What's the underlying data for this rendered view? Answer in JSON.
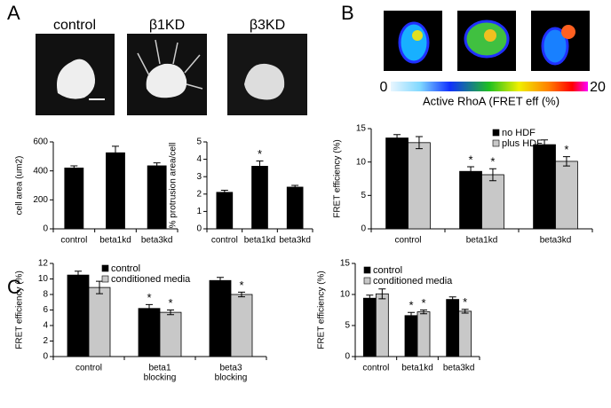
{
  "panel_labels": [
    "A",
    "B",
    "C"
  ],
  "images": {
    "captions": [
      "control",
      "β1KD",
      "β3KD"
    ]
  },
  "colorbar": {
    "min_label": "0",
    "max_label": "20",
    "caption": "Active RhoA (FRET eff (%)"
  },
  "chart_data": [
    {
      "type": "bar",
      "ylabel": "cell area (um2)",
      "categories": [
        "control",
        "beta1kd",
        "beta3kd"
      ],
      "ylim": [
        0,
        600
      ],
      "yticks": [
        0,
        200,
        400,
        600
      ],
      "series": [
        {
          "color": "#000000",
          "values": [
            420,
            525,
            435
          ],
          "errors": [
            15,
            45,
            20
          ]
        }
      ]
    },
    {
      "type": "bar",
      "ylabel": "% protrusion area/cell",
      "categories": [
        "control",
        "beta1kd",
        "beta3kd"
      ],
      "ylim": [
        0,
        5
      ],
      "yticks": [
        0,
        1,
        2,
        3,
        4,
        5
      ],
      "series": [
        {
          "color": "#000000",
          "values": [
            2.1,
            3.6,
            2.4
          ],
          "errors": [
            0.12,
            0.3,
            0.1
          ],
          "annotations": [
            null,
            "*",
            null
          ]
        }
      ]
    },
    {
      "type": "bar",
      "ylabel": "FRET efficiency (%)",
      "categories": [
        "control",
        "beta1kd",
        "beta3kd"
      ],
      "ylim": [
        0,
        15
      ],
      "yticks": [
        0,
        5,
        10,
        15
      ],
      "series": [
        {
          "name": "no HDF",
          "color": "#000000",
          "values": [
            13.6,
            8.6,
            12.6
          ],
          "errors": [
            0.5,
            0.7,
            0.7
          ],
          "annotations": [
            null,
            "*",
            null
          ]
        },
        {
          "name": "plus HDF",
          "color": "#c8c8c8",
          "values": [
            12.9,
            8.1,
            10.1
          ],
          "errors": [
            0.9,
            0.9,
            0.7
          ],
          "annotations": [
            null,
            "*",
            "*"
          ]
        }
      ]
    },
    {
      "type": "bar",
      "ylabel": "FRET efficiency (%)",
      "categories": [
        [
          "control"
        ],
        [
          "beta1",
          "blocking"
        ],
        [
          "beta3",
          "blocking"
        ]
      ],
      "ylim": [
        0,
        12
      ],
      "yticks": [
        0,
        2,
        4,
        6,
        8,
        10,
        12
      ],
      "series": [
        {
          "name": "control",
          "color": "#000000",
          "values": [
            10.5,
            6.2,
            9.8
          ],
          "errors": [
            0.5,
            0.5,
            0.4
          ],
          "annotations": [
            null,
            "*",
            null
          ]
        },
        {
          "name": "conditioned media",
          "color": "#c8c8c8",
          "values": [
            8.9,
            5.7,
            8.0
          ],
          "errors": [
            0.8,
            0.3,
            0.3
          ],
          "annotations": [
            null,
            "*",
            "*"
          ]
        }
      ]
    },
    {
      "type": "bar",
      "ylabel": "FRET efficiency (%)",
      "categories": [
        "control",
        "beta1kd",
        "beta3kd"
      ],
      "ylim": [
        0,
        15
      ],
      "yticks": [
        0,
        5,
        10,
        15
      ],
      "series": [
        {
          "name": "control",
          "color": "#000000",
          "values": [
            9.4,
            6.6,
            9.2
          ],
          "errors": [
            0.5,
            0.5,
            0.4
          ],
          "annotations": [
            null,
            "*",
            null
          ]
        },
        {
          "name": "conditioned media",
          "color": "#c8c8c8",
          "values": [
            10.1,
            7.2,
            7.3
          ],
          "errors": [
            0.8,
            0.3,
            0.3
          ],
          "annotations": [
            null,
            "*",
            "*"
          ]
        }
      ]
    }
  ]
}
